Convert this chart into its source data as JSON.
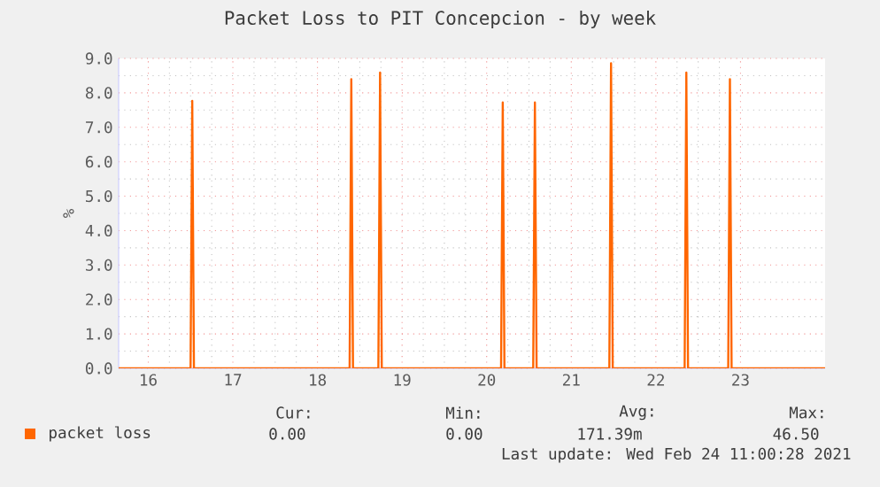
{
  "chart_data": {
    "type": "line",
    "title": "Packet Loss to PIT Concepcion - by week",
    "ylabel": "%",
    "xlim": [
      15.65,
      24.0
    ],
    "xticks": [
      16,
      17,
      18,
      19,
      20,
      21,
      22,
      23
    ],
    "ylim": [
      0,
      9
    ],
    "yticks": [
      {
        "value": 0,
        "label": "0.0"
      },
      {
        "value": 1,
        "label": "1.0"
      },
      {
        "value": 2,
        "label": "2.0"
      },
      {
        "value": 3,
        "label": "3.0"
      },
      {
        "value": 4,
        "label": "4.0"
      },
      {
        "value": 5,
        "label": "5.0"
      },
      {
        "value": 6,
        "label": "6.0"
      },
      {
        "value": 7,
        "label": "7.0"
      },
      {
        "value": 8,
        "label": "8.0"
      },
      {
        "value": 9,
        "label": "9.0"
      }
    ],
    "grid": true,
    "legend": "bottom",
    "marker": "none",
    "line_style": "solid",
    "x": [
      15.65,
      16.5,
      16.52,
      16.54,
      18.38,
      18.4,
      18.42,
      18.72,
      18.74,
      18.76,
      20.17,
      20.19,
      20.21,
      20.55,
      20.57,
      20.59,
      21.45,
      21.47,
      21.49,
      22.34,
      22.36,
      22.38,
      22.855,
      22.875,
      22.895,
      24.0
    ],
    "series": [
      {
        "name": "packet loss",
        "color": "#ff6600",
        "values": [
          0,
          0,
          7.77,
          0,
          0,
          8.4,
          0,
          0,
          8.59,
          0,
          0,
          7.72,
          0,
          0,
          7.72,
          0,
          0,
          8.86,
          0,
          0,
          8.59,
          0,
          0,
          8.4,
          0,
          0
        ]
      }
    ],
    "annotations": [
      "Cur:",
      "0.00",
      "Min:",
      "0.00",
      "Avg:",
      "171.39m",
      "Max:",
      "46.50",
      "Last update: Wed Feb 24 11:00:28 2021"
    ]
  }
}
